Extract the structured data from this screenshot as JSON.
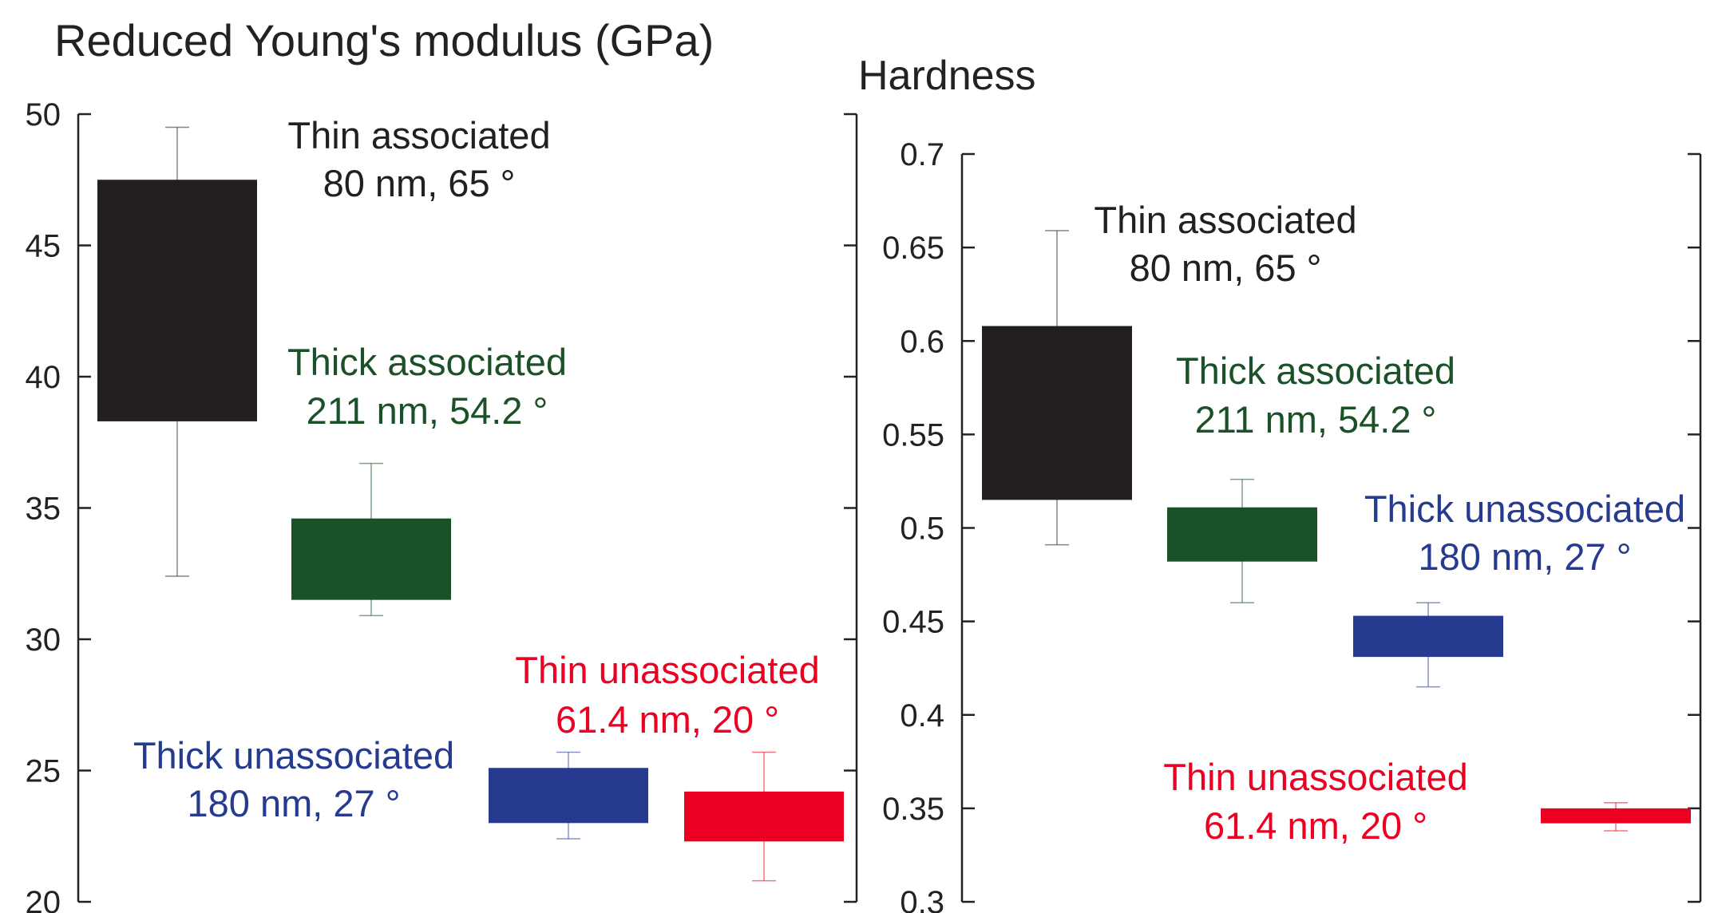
{
  "chart_data": [
    {
      "type": "box",
      "title": "Reduced Young's modulus (GPa)",
      "ylim": [
        20,
        50
      ],
      "yticks": [
        20,
        25,
        30,
        35,
        40,
        45,
        50
      ],
      "grid": false,
      "series": [
        {
          "name": "Thin associated",
          "detail": "80 nm, 65 °",
          "color": "#231f20",
          "whisker_low": 32.4,
          "q1": 38.3,
          "q3": 47.5,
          "whisker_high": 49.5
        },
        {
          "name": "Thick associated",
          "detail": "211 nm, 54.2 °",
          "color": "#1b5128",
          "whisker_low": 30.9,
          "q1": 31.5,
          "q3": 34.6,
          "whisker_high": 36.7
        },
        {
          "name": "Thick unassociated",
          "detail": "180 nm, 27 °",
          "color": "#263a8f",
          "whisker_low": 22.4,
          "q1": 23.0,
          "q3": 25.1,
          "whisker_high": 25.7
        },
        {
          "name": "Thin unassociated",
          "detail": "61.4 nm, 20 °",
          "color": "#ec0022",
          "whisker_low": 20.8,
          "q1": 22.3,
          "q3": 24.2,
          "whisker_high": 25.7
        }
      ]
    },
    {
      "type": "box",
      "title": "Hardness",
      "ylim": [
        0.3,
        0.7
      ],
      "yticks": [
        "0.3",
        "0.35",
        "0.4",
        "0.45",
        "0.5",
        "0.55",
        "0.6",
        "0.65",
        "0.7"
      ],
      "grid": false,
      "series": [
        {
          "name": "Thin associated",
          "detail": "80 nm, 65 °",
          "color": "#231f20",
          "whisker_low": 0.491,
          "q1": 0.515,
          "q3": 0.608,
          "whisker_high": 0.659
        },
        {
          "name": "Thick associated",
          "detail": "211 nm, 54.2 °",
          "color": "#1b5128",
          "whisker_low": 0.46,
          "q1": 0.482,
          "q3": 0.511,
          "whisker_high": 0.526
        },
        {
          "name": "Thick unassociated",
          "detail": "180 nm, 27 °",
          "color": "#263a8f",
          "whisker_low": 0.415,
          "q1": 0.431,
          "q3": 0.453,
          "whisker_high": 0.46
        },
        {
          "name": "Thin unassociated",
          "detail": "61.4 nm, 20 °",
          "color": "#ec0022",
          "whisker_low": 0.338,
          "q1": 0.342,
          "q3": 0.35,
          "whisker_high": 0.353
        }
      ]
    }
  ]
}
